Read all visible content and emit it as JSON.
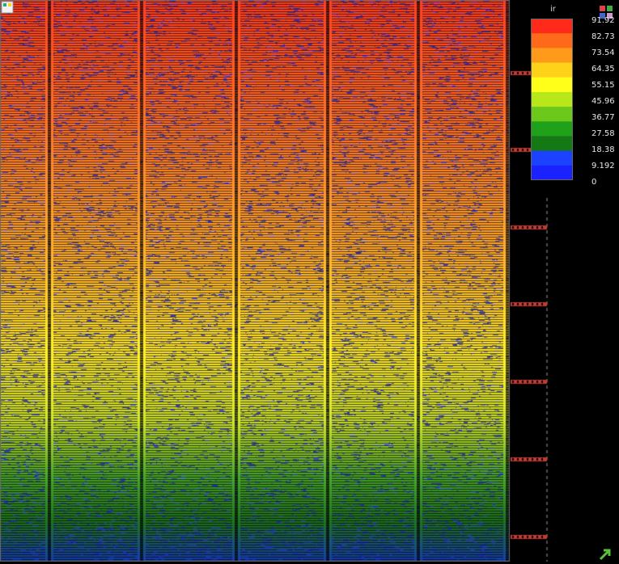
{
  "app": {
    "background": "#000000"
  },
  "legend": {
    "title": "ir",
    "ticks": [
      "91.92",
      "82.73",
      "73.54",
      "64.35",
      "55.15",
      "45.96",
      "36.77",
      "27.58",
      "18.38",
      "9.192",
      "0"
    ],
    "colors": [
      "#ff2a1a",
      "#ff6a1a",
      "#ff9a1a",
      "#ffd21a",
      "#ffff1a",
      "#b8e81a",
      "#6cc81a",
      "#1fa21a",
      "#147814",
      "#1a42ff",
      "#1a22ff"
    ]
  },
  "controls": {
    "top_left_icon": "layer-toggle-icon",
    "top_right_icon": "grid-palette-icon",
    "bottom_right_icon": "zoom-fit-icon"
  },
  "chart_data": {
    "type": "heatmap",
    "title": "",
    "value_name": "ir",
    "min": 0,
    "max": 91.92,
    "gradient": "top-to-bottom high-to-low",
    "legend_placement": "top-right"
  }
}
